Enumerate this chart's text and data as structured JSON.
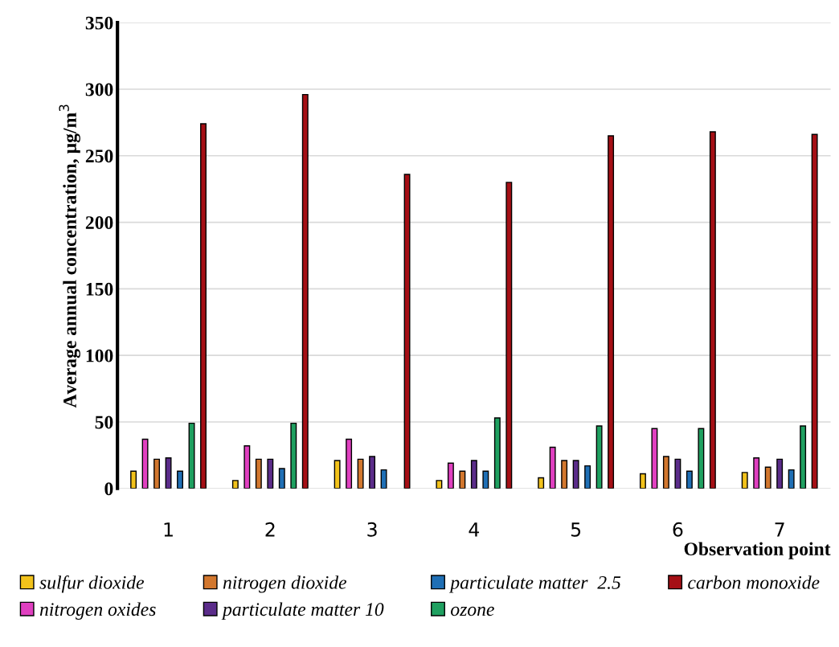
{
  "chart_data": {
    "type": "bar",
    "xlabel": "Observation point",
    "ylabel": "Average annual concentration, µg/m$^{3}$",
    "categories": [
      "1",
      "2",
      "3",
      "4",
      "5",
      "6",
      "7"
    ],
    "series": [
      {
        "name": "sulfur dioxide",
        "color": "#f2c21b",
        "values": [
          13,
          6,
          21,
          6,
          8,
          11,
          12
        ]
      },
      {
        "name": "nitrogen oxides",
        "color": "#e040c0",
        "values": [
          37,
          32,
          37,
          19,
          31,
          45,
          23
        ]
      },
      {
        "name": "nitrogen dioxide",
        "color": "#d2772e",
        "values": [
          22,
          22,
          22,
          13,
          21,
          24,
          16
        ]
      },
      {
        "name": "particulate matter 10",
        "color": "#5b2c8a",
        "values": [
          23,
          22,
          24,
          21,
          21,
          22,
          22
        ]
      },
      {
        "name": "particulate matter  2.5",
        "color": "#1f6fb5",
        "values": [
          13,
          15,
          14,
          13,
          17,
          13,
          14
        ]
      },
      {
        "name": "ozone",
        "color": "#1fa060",
        "values": [
          49,
          49,
          null,
          53,
          47,
          45,
          47
        ]
      },
      {
        "name": "carbon monoxide",
        "color": "#a50f15",
        "values": [
          274,
          296,
          236,
          230,
          265,
          268,
          266
        ]
      }
    ],
    "ylim": [
      0,
      350
    ],
    "yticks": [
      0,
      50,
      100,
      150,
      200,
      250,
      300,
      350
    ],
    "grid": "y",
    "legend": "bottom"
  }
}
